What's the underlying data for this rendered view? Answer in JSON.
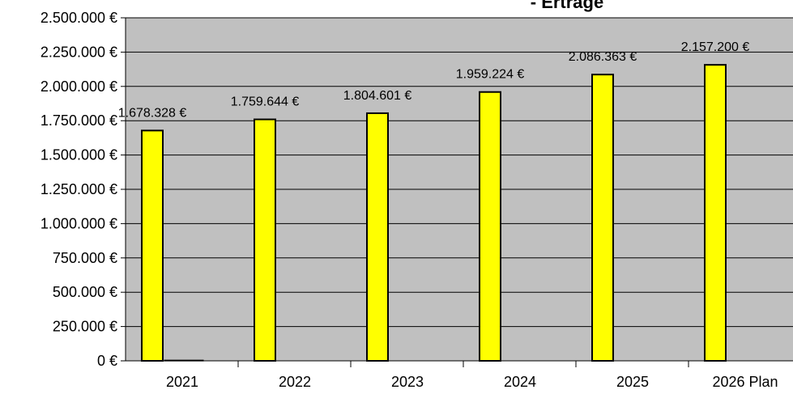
{
  "chart_data": {
    "type": "bar",
    "title": "- Erträge",
    "xlabel": "",
    "ylabel": "",
    "categories": [
      "2021",
      "2022",
      "2023",
      "2024",
      "2025",
      "2026 Plan"
    ],
    "series": [
      {
        "values": [
          1678328,
          1759644,
          1804601,
          1959224,
          2086363,
          2157200
        ],
        "data_labels": [
          "1.678.328 €",
          "1.759.644 €",
          "1.804.601 €",
          "1.959.224 €",
          "2.086.363 €",
          "2.157.200 €"
        ]
      },
      {
        "values": [
          5000,
          0,
          0,
          0,
          0,
          0
        ]
      }
    ],
    "ylim": [
      0,
      2500000
    ],
    "yticks": [
      0,
      250000,
      500000,
      750000,
      1000000,
      1250000,
      1500000,
      1750000,
      2000000,
      2250000,
      2500000
    ],
    "ytick_labels": [
      "0 €",
      "250.000 €",
      "500.000 €",
      "750.000 €",
      "1.000.000 €",
      "1.250.000 €",
      "1.500.000 €",
      "1.750.000 €",
      "2.000.000 €",
      "2.250.000 €",
      "2.500.000 €"
    ],
    "grid": true,
    "legend": "none",
    "colors": {
      "bar": "#ffff00",
      "bar_stroke": "#000000",
      "plot_bg": "#c0c0c0",
      "grid": "#000000",
      "page_bg": "#ffffff"
    }
  }
}
